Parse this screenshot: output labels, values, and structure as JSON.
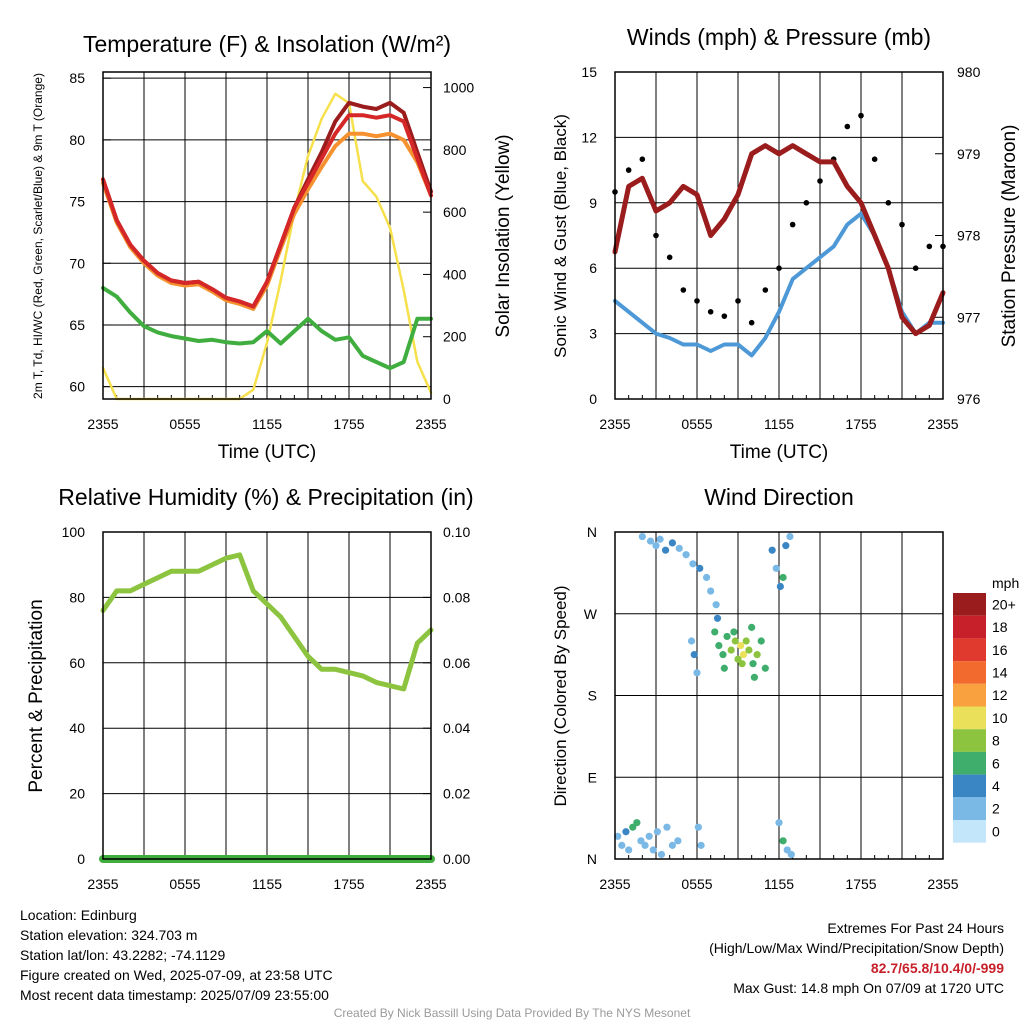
{
  "chart_data": [
    {
      "id": "temp",
      "type": "line",
      "title": "Temperature (F) & Insolation (W/m²)",
      "ylabel": "2m T, Td, HI/WC (Red, Green, Scarlet/Blue) & 9m T (Orange)",
      "y2label": "Solar Insolation (Yellow)",
      "xlabel": "Time (UTC)",
      "x_ticks": [
        "2355",
        "0555",
        "1155",
        "1755",
        "2355"
      ],
      "ylim": [
        59,
        85.5
      ],
      "y_ticks": [
        60,
        65,
        70,
        75,
        80,
        85
      ],
      "y2lim": [
        0,
        1050
      ],
      "y2_ticks": [
        0,
        200,
        400,
        600,
        800,
        1000
      ],
      "x_hours": [
        0,
        1,
        2,
        3,
        4,
        5,
        6,
        7,
        8,
        9,
        10,
        11,
        12,
        13,
        14,
        15,
        16,
        17,
        18,
        19,
        20,
        21,
        22,
        23,
        24
      ],
      "series": [
        {
          "role": "temp_2m",
          "color": "#d62728",
          "values": [
            76.8,
            73.5,
            71.5,
            70.2,
            69.2,
            68.6,
            68.4,
            68.5,
            67.9,
            67.2,
            66.9,
            66.5,
            68.5,
            71.5,
            74.5,
            76.5,
            78.5,
            80.5,
            82.0,
            82.0,
            81.8,
            82.0,
            81.5,
            78.5,
            75.5
          ]
        },
        {
          "role": "temp_9m",
          "color": "#f5922f",
          "values": [
            76.5,
            73.3,
            71.3,
            70.0,
            69.0,
            68.4,
            68.2,
            68.3,
            67.7,
            67.0,
            66.7,
            66.3,
            68.2,
            71.2,
            74.0,
            76.0,
            77.8,
            79.5,
            80.5,
            80.5,
            80.3,
            80.5,
            80.0,
            78.2,
            75.5
          ]
        },
        {
          "role": "heat_index",
          "color": "#9b1c1c",
          "values": [
            76.8,
            73.5,
            71.5,
            70.2,
            69.2,
            68.6,
            68.4,
            68.5,
            67.9,
            67.2,
            66.9,
            66.5,
            68.5,
            71.5,
            74.5,
            76.8,
            79.0,
            81.5,
            83.0,
            82.7,
            82.5,
            83.0,
            82.2,
            79.0,
            75.8
          ]
        },
        {
          "role": "dewpoint",
          "color": "#3fae3f",
          "values": [
            68.0,
            67.3,
            66.0,
            64.9,
            64.4,
            64.1,
            63.9,
            63.7,
            63.8,
            63.6,
            63.5,
            63.6,
            64.5,
            63.5,
            64.5,
            65.5,
            64.5,
            63.8,
            64.0,
            62.5,
            62.0,
            61.5,
            62.0,
            65.5,
            65.5
          ]
        },
        {
          "role": "insolation",
          "color": "#f6e04b",
          "axis": "y2",
          "values": [
            100,
            0,
            0,
            0,
            0,
            0,
            0,
            0,
            0,
            0,
            0,
            30,
            180,
            380,
            600,
            780,
            900,
            980,
            950,
            700,
            650,
            550,
            350,
            120,
            20
          ]
        }
      ]
    },
    {
      "id": "wind",
      "type": "line",
      "title": "Winds (mph) & Pressure (mb)",
      "ylabel": "Sonic Wind & Gust (Blue, Black)",
      "y2label": "Station Pressure (Maroon)",
      "xlabel": "Time (UTC)",
      "x_ticks": [
        "2355",
        "0555",
        "1155",
        "1755",
        "2355"
      ],
      "ylim": [
        0,
        15
      ],
      "y_ticks": [
        0,
        3,
        6,
        9,
        12,
        15
      ],
      "y2lim": [
        976,
        980
      ],
      "y2_ticks": [
        976,
        977,
        978,
        979,
        980
      ],
      "x_hours": [
        0,
        1,
        2,
        3,
        4,
        5,
        6,
        7,
        8,
        9,
        10,
        11,
        12,
        13,
        14,
        15,
        16,
        17,
        18,
        19,
        20,
        21,
        22,
        23,
        24
      ],
      "series": [
        {
          "role": "wind_speed",
          "color": "#4d98d6",
          "values": [
            4.5,
            4.0,
            3.5,
            3.0,
            2.8,
            2.5,
            2.5,
            2.2,
            2.5,
            2.5,
            2.0,
            2.8,
            4.0,
            5.5,
            6.0,
            6.5,
            7.0,
            8.0,
            8.5,
            7.5,
            6.0,
            4.0,
            3.0,
            3.5,
            3.5
          ]
        },
        {
          "role": "wind_gust",
          "color": "#000000",
          "values": [
            9.5,
            10.5,
            11.0,
            7.5,
            6.5,
            5.0,
            4.5,
            4.0,
            3.8,
            4.5,
            3.5,
            5.0,
            6.0,
            8.0,
            9.0,
            10.0,
            11.0,
            12.5,
            13.0,
            11.0,
            9.0,
            8.0,
            6.0,
            7.0,
            7.0
          ]
        },
        {
          "role": "pressure",
          "color": "#9b1c1c",
          "axis": "y2",
          "values": [
            977.8,
            978.6,
            978.7,
            978.3,
            978.4,
            978.6,
            978.5,
            978.0,
            978.2,
            978.5,
            979.0,
            979.1,
            979.0,
            979.1,
            979.0,
            978.9,
            978.9,
            978.6,
            978.4,
            978.0,
            977.6,
            977.0,
            976.8,
            976.9,
            977.3
          ]
        }
      ]
    },
    {
      "id": "rh",
      "type": "line",
      "title": "Relative Humidity (%) & Precipitation (in)",
      "ylabel": "Percent & Precipitation",
      "x_ticks": [
        "2355",
        "0555",
        "1155",
        "1755",
        "2355"
      ],
      "ylim": [
        0,
        100
      ],
      "y_ticks": [
        0,
        20,
        40,
        60,
        80,
        100
      ],
      "y2lim": [
        0,
        0.1
      ],
      "y2_ticks": [
        "0.00",
        "0.02",
        "0.04",
        "0.06",
        "0.08",
        "0.10"
      ],
      "x_hours": [
        0,
        1,
        2,
        3,
        4,
        5,
        6,
        7,
        8,
        9,
        10,
        11,
        12,
        13,
        14,
        15,
        16,
        17,
        18,
        19,
        20,
        21,
        22,
        23,
        24
      ],
      "series": [
        {
          "role": "relative_humidity",
          "color": "#8cc43f",
          "values": [
            76,
            82,
            82,
            84,
            86,
            88,
            88,
            88,
            90,
            92,
            93,
            82,
            78,
            74,
            68,
            62,
            58,
            58,
            57,
            56,
            54,
            53,
            52,
            66,
            70
          ]
        },
        {
          "role": "precipitation",
          "color": "#3fae3f",
          "axis": "y2",
          "values": [
            0,
            0,
            0,
            0,
            0,
            0,
            0,
            0,
            0,
            0,
            0,
            0,
            0,
            0,
            0,
            0,
            0,
            0,
            0,
            0,
            0,
            0,
            0,
            0,
            0
          ]
        }
      ]
    },
    {
      "id": "dir",
      "type": "scatter",
      "title": "Wind Direction",
      "ylabel": "Direction (Colored By Speed)",
      "x_ticks": [
        "2355",
        "0555",
        "1155",
        "1755",
        "2355"
      ],
      "y_ticks": [
        "N",
        "E",
        "S",
        "W",
        "N"
      ],
      "ylim": [
        0,
        360
      ],
      "legend": {
        "unit": "mph",
        "labels": [
          "20+",
          "18",
          "16",
          "14",
          "12",
          "10",
          "8",
          "6",
          "4",
          "2",
          "0"
        ],
        "colors": [
          "#9b1c1c",
          "#c8202a",
          "#e03a2e",
          "#f26a2e",
          "#f9a03f",
          "#ebe05a",
          "#8cc43f",
          "#3fae6c",
          "#3a86c4",
          "#7ab8e6",
          "#c4e6fa"
        ]
      },
      "points": [
        [
          0.2,
          25,
          3
        ],
        [
          0.5,
          15,
          3
        ],
        [
          0.8,
          30,
          4
        ],
        [
          1.0,
          10,
          3
        ],
        [
          1.3,
          35,
          7
        ],
        [
          1.6,
          40,
          7
        ],
        [
          1.9,
          20,
          3
        ],
        [
          2.2,
          15,
          3
        ],
        [
          2.5,
          25,
          2
        ],
        [
          2.8,
          10,
          2
        ],
        [
          3.1,
          30,
          3
        ],
        [
          3.4,
          5,
          2
        ],
        [
          3.8,
          35,
          2
        ],
        [
          4.2,
          15,
          2
        ],
        [
          4.6,
          20,
          2
        ],
        [
          2.0,
          355,
          2
        ],
        [
          2.6,
          350,
          3
        ],
        [
          3.0,
          345,
          3
        ],
        [
          3.3,
          352,
          2
        ],
        [
          3.7,
          340,
          4
        ],
        [
          4.2,
          348,
          4
        ],
        [
          4.7,
          342,
          3
        ],
        [
          5.2,
          335,
          3
        ],
        [
          5.7,
          325,
          3
        ],
        [
          6.2,
          320,
          4
        ],
        [
          6.7,
          310,
          3
        ],
        [
          7.0,
          295,
          3
        ],
        [
          7.4,
          280,
          2
        ],
        [
          6.1,
          35,
          2
        ],
        [
          6.3,
          15,
          2
        ],
        [
          5.6,
          240,
          3
        ],
        [
          5.8,
          225,
          4
        ],
        [
          6.0,
          205,
          3
        ],
        [
          7.3,
          250,
          7
        ],
        [
          7.6,
          235,
          7
        ],
        [
          7.9,
          225,
          6
        ],
        [
          8.2,
          245,
          7
        ],
        [
          8.5,
          230,
          8
        ],
        [
          8.8,
          240,
          8
        ],
        [
          9.0,
          220,
          9
        ],
        [
          9.2,
          235,
          10
        ],
        [
          9.4,
          225,
          10
        ],
        [
          9.6,
          240,
          9
        ],
        [
          9.8,
          230,
          8
        ],
        [
          10.1,
          215,
          7
        ],
        [
          10.4,
          225,
          8
        ],
        [
          10.7,
          240,
          7
        ],
        [
          11.0,
          210,
          6
        ],
        [
          10.0,
          255,
          7
        ],
        [
          8.0,
          210,
          6
        ],
        [
          7.5,
          265,
          5
        ],
        [
          8.7,
          250,
          6
        ],
        [
          9.3,
          215,
          9
        ],
        [
          10.2,
          200,
          6
        ],
        [
          11.5,
          340,
          4
        ],
        [
          11.8,
          320,
          3
        ],
        [
          12.1,
          300,
          4
        ],
        [
          12.3,
          310,
          6
        ],
        [
          12.5,
          345,
          4
        ],
        [
          12.8,
          355,
          3
        ],
        [
          12.0,
          40,
          3
        ],
        [
          12.3,
          20,
          7
        ],
        [
          12.6,
          10,
          3
        ],
        [
          12.9,
          5,
          3
        ]
      ]
    }
  ],
  "info": {
    "location": "Location: Edinburg",
    "elevation": "Station elevation: 324.703 m",
    "latlon": "Station lat/lon: 43.2282; -74.1129",
    "created": "Figure created on Wed, 2025-07-09, at 23:58 UTC",
    "recent": "Most recent data timestamp: 2025/07/09 23:55:00"
  },
  "extremes": {
    "heading": "Extremes For Past 24 Hours",
    "fields": "(High/Low/Max Wind/Precipitation/Snow Depth)",
    "values": "82.7/65.8/10.4/0/-999",
    "gust": "Max Gust: 14.8 mph On 07/09 at 1720 UTC"
  },
  "credit": "Created By Nick Bassill Using Data Provided By The NYS Mesonet"
}
